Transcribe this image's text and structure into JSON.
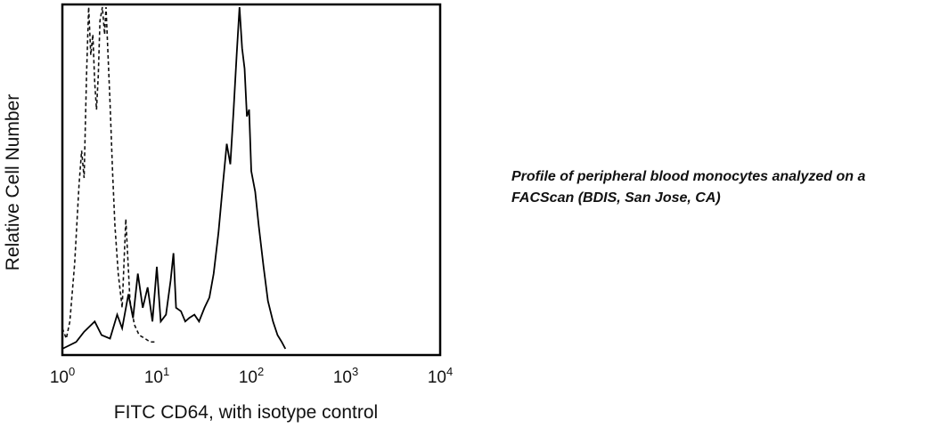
{
  "caption": {
    "line1": "Profile of peripheral blood monocytes analyzed on a",
    "line2": "FACScan (BDIS, San Jose, CA)"
  },
  "chart_data": {
    "type": "line",
    "xlabel": "FITC CD64, with isotype control",
    "ylabel": "Relative Cell Number",
    "xscale": "log",
    "xlim": [
      1,
      10000
    ],
    "ylim": [
      0,
      100
    ],
    "xticks": [
      {
        "base": "10",
        "exp": "0",
        "value": 1
      },
      {
        "base": "10",
        "exp": "1",
        "value": 10
      },
      {
        "base": "10",
        "exp": "2",
        "value": 100
      },
      {
        "base": "10",
        "exp": "3",
        "value": 1000
      },
      {
        "base": "10",
        "exp": "4",
        "value": 10000
      }
    ],
    "grid": false,
    "legend": "none",
    "series": [
      {
        "style": "dashed",
        "color": "#111111",
        "points": [
          [
            1.0,
            6
          ],
          [
            1.1,
            3
          ],
          [
            1.2,
            8
          ],
          [
            1.35,
            25
          ],
          [
            1.5,
            48
          ],
          [
            1.6,
            58
          ],
          [
            1.7,
            50
          ],
          [
            1.8,
            80
          ],
          [
            1.9,
            100
          ],
          [
            2.0,
            86
          ],
          [
            2.1,
            92
          ],
          [
            2.2,
            78
          ],
          [
            2.3,
            70
          ],
          [
            2.4,
            80
          ],
          [
            2.5,
            96
          ],
          [
            2.65,
            100
          ],
          [
            2.8,
            92
          ],
          [
            2.9,
            100
          ],
          [
            3.0,
            90
          ],
          [
            3.2,
            72
          ],
          [
            3.4,
            52
          ],
          [
            3.6,
            36
          ],
          [
            3.9,
            22
          ],
          [
            4.3,
            12
          ],
          [
            4.7,
            38
          ],
          [
            5.2,
            14
          ],
          [
            5.8,
            7
          ],
          [
            6.5,
            4
          ],
          [
            7.5,
            3
          ],
          [
            8.5,
            2
          ],
          [
            10.0,
            2
          ]
        ]
      },
      {
        "style": "solid",
        "color": "#000000",
        "points": [
          [
            1.0,
            0
          ],
          [
            1.4,
            2
          ],
          [
            1.7,
            5
          ],
          [
            2.2,
            8
          ],
          [
            2.6,
            4
          ],
          [
            3.2,
            3
          ],
          [
            3.8,
            10
          ],
          [
            4.3,
            6
          ],
          [
            5.0,
            16
          ],
          [
            5.6,
            9
          ],
          [
            6.3,
            22
          ],
          [
            7.1,
            12
          ],
          [
            8.0,
            18
          ],
          [
            9.0,
            8
          ],
          [
            10.0,
            24
          ],
          [
            11.0,
            8
          ],
          [
            12.5,
            10
          ],
          [
            14.0,
            20
          ],
          [
            15.0,
            28
          ],
          [
            16.0,
            12
          ],
          [
            18.0,
            11
          ],
          [
            20.0,
            8
          ],
          [
            22.0,
            9
          ],
          [
            25.0,
            10
          ],
          [
            28.0,
            8
          ],
          [
            32.0,
            12
          ],
          [
            36.0,
            15
          ],
          [
            40.0,
            22
          ],
          [
            45.0,
            34
          ],
          [
            50.0,
            48
          ],
          [
            55.0,
            60
          ],
          [
            60.0,
            54
          ],
          [
            65.0,
            70
          ],
          [
            70.0,
            86
          ],
          [
            75.0,
            100
          ],
          [
            80.0,
            88
          ],
          [
            85.0,
            82
          ],
          [
            90.0,
            68
          ],
          [
            95.0,
            70
          ],
          [
            100.0,
            52
          ],
          [
            110.0,
            46
          ],
          [
            120.0,
            36
          ],
          [
            135.0,
            24
          ],
          [
            150.0,
            14
          ],
          [
            170.0,
            8
          ],
          [
            190.0,
            4
          ],
          [
            210.0,
            2
          ],
          [
            230.0,
            0
          ]
        ]
      }
    ]
  }
}
